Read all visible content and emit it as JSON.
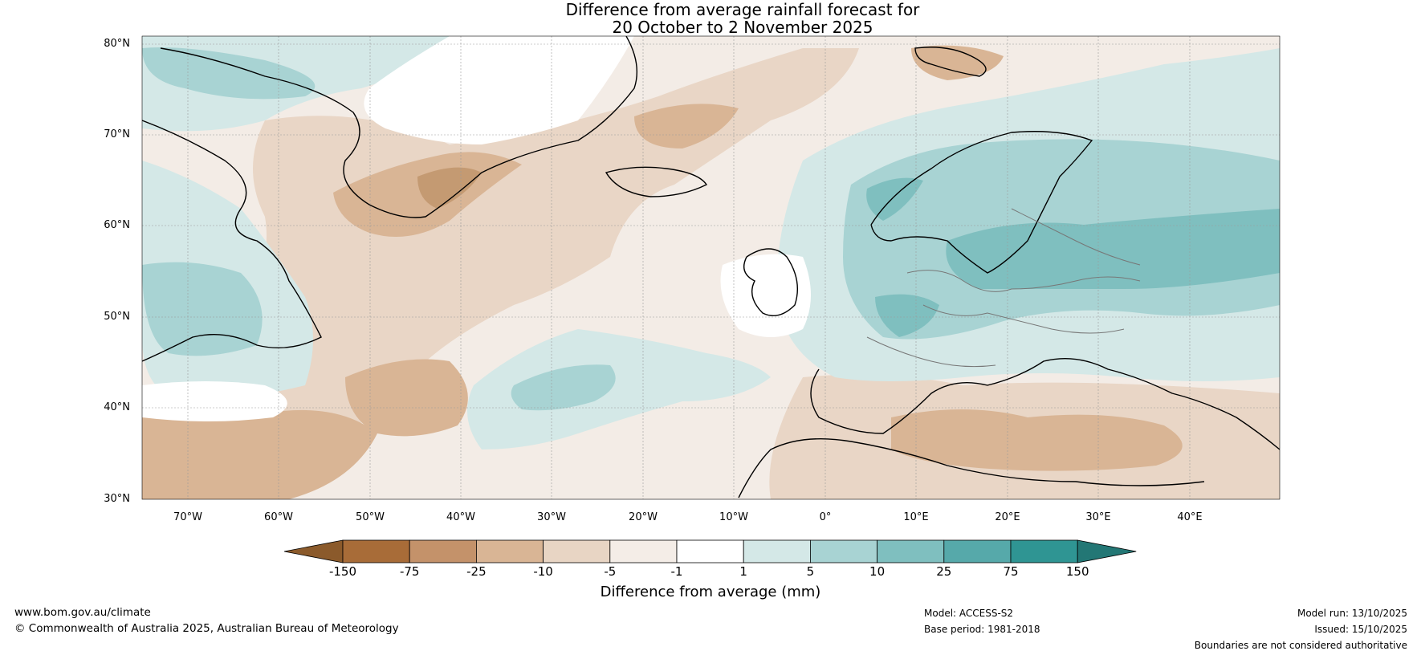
{
  "title": {
    "line1": "Difference from average rainfall forecast for",
    "line2": "20 October to 2 November 2025"
  },
  "map": {
    "lat_labels": [
      "80°N",
      "70°N",
      "60°N",
      "50°N",
      "40°N",
      "30°N"
    ],
    "lon_labels": [
      "70°W",
      "60°W",
      "50°W",
      "40°W",
      "30°W",
      "20°W",
      "10°W",
      "0°",
      "10°E",
      "20°E",
      "30°E",
      "40°E"
    ],
    "colors": {
      "dry_strong": "#a86c38",
      "dry_moderate": "#c49a72",
      "dry_light": "#dfc2a8",
      "dry_slight": "#e9d6c6",
      "near_dry": "#f3ece6",
      "neutral": "#ffffff",
      "wet_slight": "#d4e8e7",
      "wet_light": "#a8d3d3",
      "wet_moderate": "#7fbfbf",
      "wet_strong": "#56a9aa"
    }
  },
  "colorbar": {
    "ticks": [
      "-150",
      "-75",
      "-25",
      "-10",
      "-5",
      "-1",
      "1",
      "5",
      "10",
      "25",
      "75",
      "150"
    ],
    "colors": [
      "#8b5a2b",
      "#a86c38",
      "#c4926a",
      "#d9b595",
      "#e8d5c4",
      "#f4ede7",
      "#ffffff",
      "#d4e8e7",
      "#a8d3d3",
      "#7fbfbf",
      "#56a9aa",
      "#2f9593",
      "#237775"
    ],
    "label": "Difference from average (mm)"
  },
  "footer": {
    "website": "www.bom.gov.au/climate",
    "copyright": "© Commonwealth of Australia 2025, Australian Bureau of Meteorology",
    "model": "Model: ACCESS-S2",
    "base_period": "Base period: 1981-2018",
    "model_run": "Model run: 13/10/2025",
    "issued": "Issued: 15/10/2025",
    "disclaimer": "Boundaries are not considered authoritative"
  }
}
